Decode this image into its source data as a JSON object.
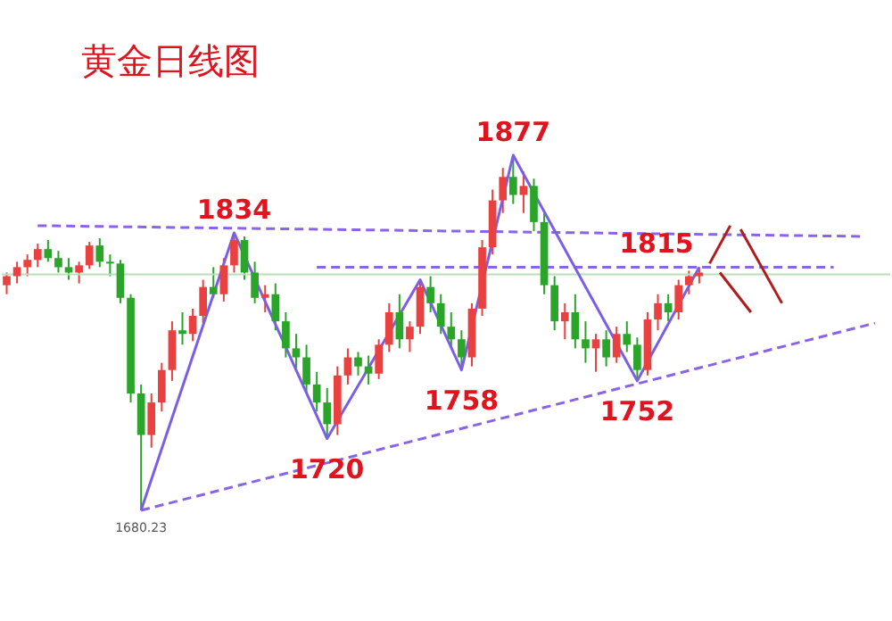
{
  "chart_data": {
    "type": "candlestick",
    "title": "黄金日线图",
    "categories": [
      null,
      null,
      null,
      null,
      null,
      null,
      null,
      null,
      null,
      null,
      null,
      null,
      null,
      null,
      null,
      null,
      null,
      null,
      null,
      null,
      null,
      null,
      null,
      null,
      null,
      null,
      null,
      null,
      null,
      null,
      null,
      null,
      null,
      null,
      null,
      null,
      null,
      null,
      null,
      null,
      null,
      null,
      null,
      null,
      null,
      null,
      null,
      null,
      null,
      null,
      null,
      null,
      null,
      null,
      null,
      null,
      null,
      null,
      null,
      null,
      null,
      null,
      null,
      null,
      null,
      null,
      null,
      null,
      null,
      null,
      null,
      null,
      null,
      null,
      null,
      null,
      null,
      null,
      null,
      null,
      null,
      null,
      null,
      null,
      null,
      null
    ],
    "ohlc": [
      [
        1805,
        1812,
        1800,
        1810
      ],
      [
        1810,
        1818,
        1806,
        1815
      ],
      [
        1815,
        1822,
        1810,
        1819
      ],
      [
        1819,
        1828,
        1815,
        1825
      ],
      [
        1825,
        1830,
        1818,
        1820
      ],
      [
        1820,
        1824,
        1812,
        1815
      ],
      [
        1815,
        1820,
        1808,
        1812
      ],
      [
        1812,
        1818,
        1806,
        1816
      ],
      [
        1816,
        1829,
        1814,
        1827
      ],
      [
        1827,
        1831,
        1815,
        1818
      ],
      [
        1818,
        1822,
        1810,
        1817
      ],
      [
        1817,
        1819,
        1795,
        1798
      ],
      [
        1798,
        1800,
        1740,
        1745
      ],
      [
        1745,
        1750,
        1680.23,
        1722
      ],
      [
        1722,
        1745,
        1715,
        1740
      ],
      [
        1740,
        1762,
        1735,
        1758
      ],
      [
        1758,
        1785,
        1752,
        1780
      ],
      [
        1780,
        1790,
        1772,
        1778
      ],
      [
        1778,
        1792,
        1774,
        1788
      ],
      [
        1788,
        1808,
        1784,
        1804
      ],
      [
        1804,
        1815,
        1798,
        1800
      ],
      [
        1800,
        1820,
        1796,
        1816
      ],
      [
        1816,
        1834,
        1812,
        1830
      ],
      [
        1830,
        1832,
        1808,
        1812
      ],
      [
        1812,
        1818,
        1795,
        1798
      ],
      [
        1798,
        1805,
        1790,
        1800
      ],
      [
        1800,
        1806,
        1780,
        1785
      ],
      [
        1785,
        1790,
        1765,
        1770
      ],
      [
        1770,
        1778,
        1759,
        1765
      ],
      [
        1765,
        1772,
        1745,
        1750
      ],
      [
        1750,
        1757,
        1735,
        1740
      ],
      [
        1740,
        1748,
        1720,
        1728
      ],
      [
        1728,
        1760,
        1722,
        1755
      ],
      [
        1755,
        1770,
        1750,
        1765
      ],
      [
        1765,
        1768,
        1755,
        1760
      ],
      [
        1760,
        1766,
        1750,
        1756
      ],
      [
        1756,
        1775,
        1753,
        1772
      ],
      [
        1772,
        1795,
        1768,
        1790
      ],
      [
        1790,
        1800,
        1770,
        1775
      ],
      [
        1775,
        1785,
        1768,
        1782
      ],
      [
        1782,
        1808,
        1778,
        1804
      ],
      [
        1804,
        1810,
        1790,
        1795
      ],
      [
        1795,
        1800,
        1778,
        1782
      ],
      [
        1782,
        1790,
        1770,
        1775
      ],
      [
        1775,
        1780,
        1758,
        1765
      ],
      [
        1765,
        1795,
        1760,
        1792
      ],
      [
        1792,
        1830,
        1788,
        1826
      ],
      [
        1826,
        1858,
        1822,
        1852
      ],
      [
        1852,
        1870,
        1845,
        1865
      ],
      [
        1865,
        1877,
        1850,
        1855
      ],
      [
        1855,
        1868,
        1845,
        1860
      ],
      [
        1860,
        1864,
        1835,
        1840
      ],
      [
        1840,
        1845,
        1800,
        1805
      ],
      [
        1805,
        1810,
        1780,
        1785
      ],
      [
        1785,
        1795,
        1775,
        1790
      ],
      [
        1790,
        1800,
        1770,
        1775
      ],
      [
        1775,
        1785,
        1762,
        1770
      ],
      [
        1770,
        1778,
        1757,
        1775
      ],
      [
        1775,
        1780,
        1760,
        1765
      ],
      [
        1765,
        1782,
        1762,
        1778
      ],
      [
        1778,
        1785,
        1768,
        1772
      ],
      [
        1772,
        1776,
        1752,
        1758
      ],
      [
        1758,
        1790,
        1755,
        1786
      ],
      [
        1786,
        1800,
        1780,
        1795
      ],
      [
        1795,
        1800,
        1785,
        1790
      ],
      [
        1790,
        1808,
        1786,
        1805
      ],
      [
        1805,
        1813,
        1800,
        1810
      ],
      [
        1810,
        1815,
        1806,
        1812
      ],
      null,
      null,
      null,
      null,
      null,
      null,
      null,
      null,
      null,
      null,
      null,
      null,
      null,
      null,
      null,
      null,
      null,
      null
    ],
    "colors": [
      "#e8413f",
      "#e8413f",
      "#e8413f",
      "#e8413f",
      "#2aa52a",
      "#2aa52a",
      "#2aa52a",
      "#e8413f",
      "#e8413f",
      "#2aa52a",
      "#2aa52a",
      "#2aa52a",
      "#2aa52a",
      "#2aa52a",
      "#e8413f",
      "#e8413f",
      "#e8413f",
      "#2aa52a",
      "#e8413f",
      "#e8413f",
      "#2aa52a",
      "#e8413f",
      "#e8413f",
      "#2aa52a",
      "#2aa52a",
      "#e8413f",
      "#2aa52a",
      "#2aa52a",
      "#2aa52a",
      "#2aa52a",
      "#2aa52a",
      "#2aa52a",
      "#e8413f",
      "#e8413f",
      "#2aa52a",
      "#2aa52a",
      "#e8413f",
      "#e8413f",
      "#2aa52a",
      "#e8413f",
      "#e8413f",
      "#2aa52a",
      "#2aa52a",
      "#2aa52a",
      "#2aa52a",
      "#e8413f",
      "#e8413f",
      "#e8413f",
      "#e8413f",
      "#2aa52a",
      "#e8413f",
      "#2aa52a",
      "#2aa52a",
      "#2aa52a",
      "#e8413f",
      "#2aa52a",
      "#2aa52a",
      "#e8413f",
      "#2aa52a",
      "#e8413f",
      "#2aa52a",
      "#2aa52a",
      "#e8413f",
      "#e8413f",
      "#2aa52a",
      "#e8413f",
      "#e8413f",
      "#e8413f",
      null,
      null,
      null,
      null,
      null,
      null,
      null,
      null,
      null,
      null,
      null,
      null,
      null,
      null,
      null,
      null,
      null,
      null
    ],
    "tick_labels": false,
    "ref_lines": [
      {
        "axis": "y",
        "value": 1811,
        "color": "#b8e0b8"
      }
    ],
    "series": [
      {
        "type": "line",
        "color": "#8a63e6",
        "line_style": "dashed",
        "values": [
          null,
          null,
          null,
          1838,
          null,
          null,
          null,
          null,
          null,
          null,
          null,
          null,
          null,
          null,
          null,
          null,
          null,
          null,
          null,
          null,
          null,
          null,
          null,
          null,
          null,
          null,
          null,
          null,
          null,
          null,
          null,
          null,
          null,
          null,
          null,
          null,
          null,
          null,
          null,
          null,
          null,
          null,
          null,
          null,
          null,
          null,
          null,
          null,
          null,
          null,
          null,
          null,
          null,
          null,
          null,
          null,
          null,
          null,
          null,
          null,
          null,
          null,
          null,
          null,
          null,
          null,
          null,
          null,
          null,
          null,
          null,
          null,
          null,
          null,
          null,
          null,
          null,
          null,
          null,
          null,
          null,
          null,
          null,
          1832,
          null,
          null
        ]
      },
      {
        "type": "line",
        "color": "#8a63e6",
        "line_style": "dashed",
        "values": [
          null,
          null,
          null,
          null,
          null,
          null,
          null,
          null,
          null,
          null,
          null,
          null,
          null,
          null,
          null,
          null,
          null,
          null,
          null,
          null,
          null,
          null,
          null,
          null,
          null,
          null,
          null,
          null,
          null,
          null,
          1815,
          null,
          null,
          null,
          null,
          null,
          null,
          null,
          null,
          null,
          null,
          null,
          null,
          null,
          null,
          null,
          null,
          null,
          null,
          null,
          null,
          null,
          null,
          null,
          null,
          null,
          null,
          null,
          null,
          null,
          null,
          null,
          null,
          null,
          null,
          null,
          null,
          null,
          null,
          null,
          null,
          null,
          null,
          null,
          null,
          null,
          null,
          null,
          null,
          null,
          1815,
          null,
          null,
          null,
          null,
          null
        ]
      },
      {
        "type": "line",
        "color": "#8a63e6",
        "line_style": "dashed",
        "values": [
          null,
          null,
          null,
          null,
          null,
          null,
          null,
          null,
          null,
          null,
          null,
          null,
          null,
          1680.23,
          null,
          null,
          null,
          null,
          null,
          null,
          null,
          null,
          null,
          null,
          null,
          null,
          null,
          null,
          null,
          null,
          null,
          null,
          null,
          null,
          null,
          null,
          null,
          null,
          null,
          null,
          null,
          null,
          null,
          null,
          null,
          null,
          null,
          null,
          null,
          null,
          null,
          null,
          null,
          null,
          null,
          null,
          null,
          null,
          null,
          null,
          null,
          null,
          null,
          null,
          null,
          null,
          null,
          null,
          null,
          null,
          null,
          null,
          null,
          null,
          null,
          null,
          null,
          null,
          null,
          null,
          null,
          null,
          null,
          null,
          1784,
          null
        ]
      },
      {
        "type": "line",
        "color": "#7b5ee8",
        "line_style": "solid",
        "values": [
          null,
          null,
          null,
          null,
          null,
          null,
          null,
          null,
          null,
          null,
          null,
          null,
          null,
          1680.23,
          null,
          null,
          null,
          null,
          null,
          null,
          null,
          null,
          1834,
          null,
          null,
          null,
          null,
          null,
          null,
          null,
          null,
          1720,
          null,
          null,
          null,
          null,
          null,
          null,
          null,
          null,
          1808,
          null,
          null,
          null,
          1758,
          null,
          null,
          null,
          null,
          1877,
          null,
          null,
          null,
          null,
          null,
          null,
          null,
          null,
          null,
          null,
          null,
          1752,
          null,
          null,
          null,
          null,
          null,
          1815,
          null,
          null,
          null,
          null,
          null,
          null,
          null,
          null,
          null,
          null,
          null,
          null,
          null,
          null,
          null,
          null,
          null,
          null
        ]
      },
      {
        "type": "line",
        "color": "#b01c1c",
        "line_style": "solid",
        "values": [
          null,
          null,
          null,
          null,
          null,
          null,
          null,
          null,
          null,
          null,
          null,
          null,
          null,
          null,
          null,
          null,
          null,
          null,
          null,
          null,
          null,
          null,
          null,
          null,
          null,
          null,
          null,
          null,
          null,
          null,
          null,
          null,
          null,
          null,
          null,
          null,
          null,
          null,
          null,
          null,
          null,
          null,
          null,
          null,
          null,
          null,
          null,
          null,
          null,
          null,
          null,
          null,
          null,
          null,
          null,
          null,
          null,
          null,
          null,
          null,
          null,
          null,
          null,
          null,
          null,
          null,
          null,
          null,
          1817,
          null,
          1838,
          null,
          null,
          null,
          null,
          null,
          null,
          null,
          null,
          null,
          null,
          null,
          null,
          null,
          null,
          null
        ]
      },
      {
        "type": "line",
        "color": "#b01c1c",
        "line_style": "solid",
        "values": [
          null,
          null,
          null,
          null,
          null,
          null,
          null,
          null,
          null,
          null,
          null,
          null,
          null,
          null,
          null,
          null,
          null,
          null,
          null,
          null,
          null,
          null,
          null,
          null,
          null,
          null,
          null,
          null,
          null,
          null,
          null,
          null,
          null,
          null,
          null,
          null,
          null,
          null,
          null,
          null,
          null,
          null,
          null,
          null,
          null,
          null,
          null,
          null,
          null,
          null,
          null,
          null,
          null,
          null,
          null,
          null,
          null,
          null,
          null,
          null,
          null,
          null,
          null,
          null,
          null,
          null,
          null,
          null,
          null,
          null,
          null,
          1836,
          null,
          null,
          null,
          1795,
          null,
          null,
          null,
          null,
          null,
          null,
          null,
          null,
          null,
          null
        ]
      },
      {
        "type": "line",
        "color": "#b01c1c",
        "line_style": "solid",
        "values": [
          null,
          null,
          null,
          null,
          null,
          null,
          null,
          null,
          null,
          null,
          null,
          null,
          null,
          null,
          null,
          null,
          null,
          null,
          null,
          null,
          null,
          null,
          null,
          null,
          null,
          null,
          null,
          null,
          null,
          null,
          null,
          null,
          null,
          null,
          null,
          null,
          null,
          null,
          null,
          null,
          null,
          null,
          null,
          null,
          null,
          null,
          null,
          null,
          null,
          null,
          null,
          null,
          null,
          null,
          null,
          null,
          null,
          null,
          null,
          null,
          null,
          null,
          null,
          null,
          null,
          null,
          null,
          null,
          null,
          1812,
          null,
          null,
          1790,
          null,
          null,
          null,
          null,
          null,
          null,
          null,
          null,
          null,
          null,
          null,
          null,
          null
        ]
      }
    ],
    "annotations": [
      {
        "text": "1834",
        "y": 1834
      },
      {
        "text": "1720",
        "y": 1720
      },
      {
        "text": "1877",
        "y": 1877
      },
      {
        "text": "1758",
        "y": 1758
      },
      {
        "text": "1752",
        "y": 1752
      },
      {
        "text": "1815",
        "y": 1815
      },
      {
        "text": "1680.23",
        "y": 1680.23
      }
    ]
  }
}
